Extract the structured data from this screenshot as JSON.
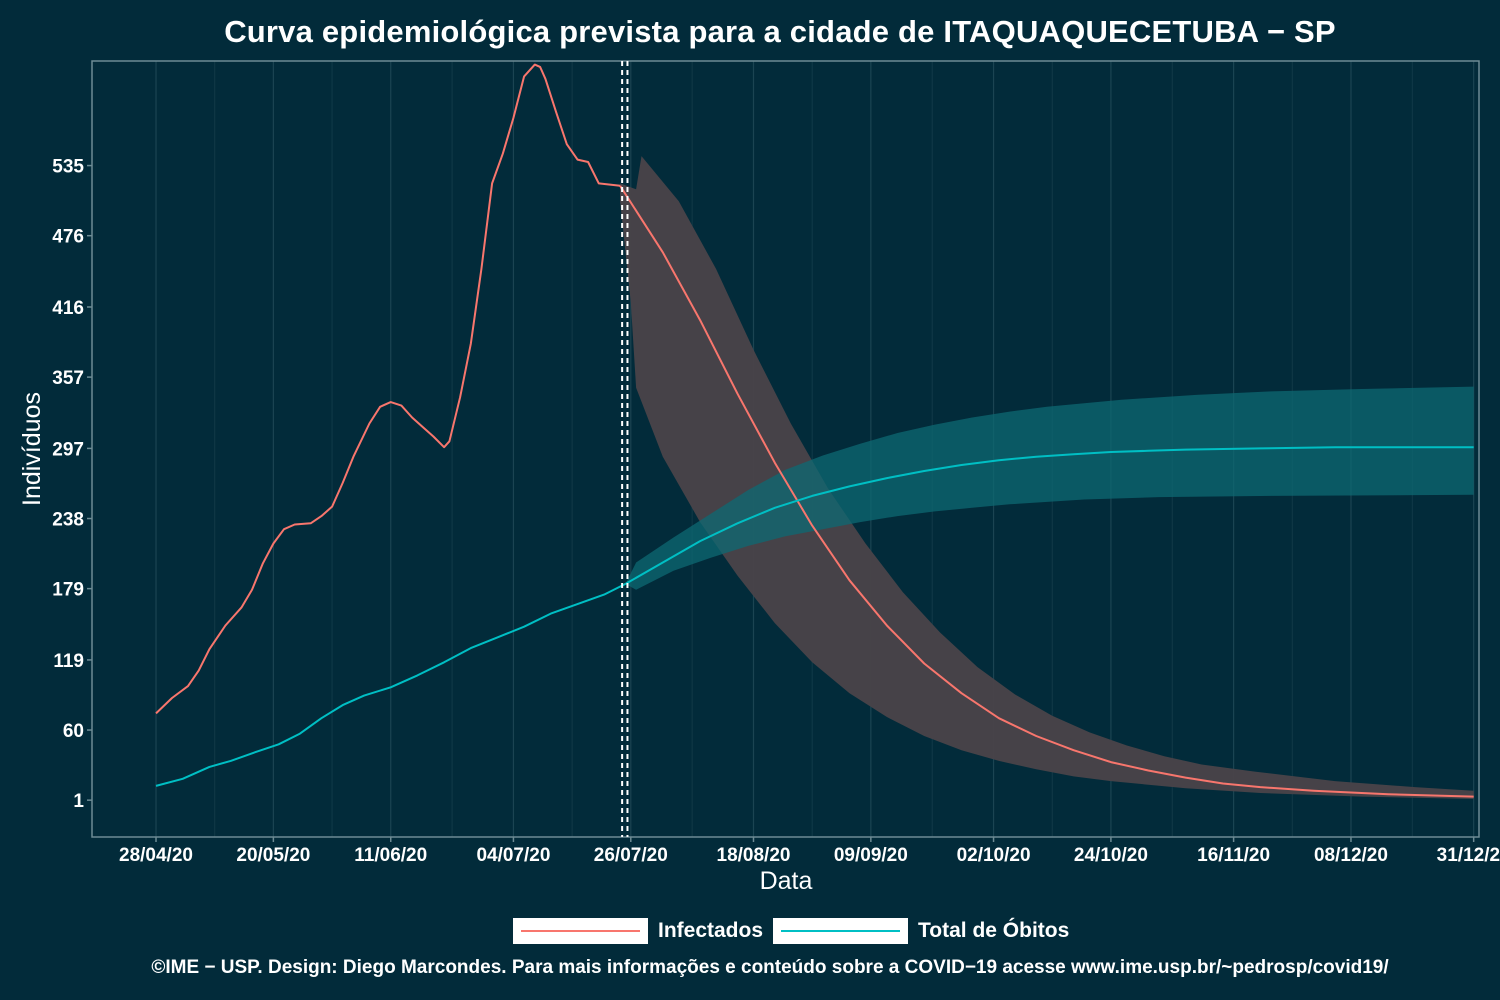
{
  "title": "Curva epidemiológica prevista para a cidade de ITAQUAQUECETUBA − SP",
  "footer": "©IME − USP. Design: Diego Marcondes. Para mais informações e conteúdo sobre a COVID−19 acesse www.ime.usp.br/~pedrosp/covid19/",
  "colors": {
    "background": "#022b3a",
    "infectados": "#f8766d",
    "obitos": "#00bfc4",
    "band_infectados": "#4a4349",
    "band_obitos": "#0d6a73"
  },
  "legend": {
    "infectados_label": "Infectados",
    "obitos_label": "Total de Óbitos"
  },
  "chart_data": {
    "type": "line",
    "xlabel": "Data",
    "ylabel": "Indivíduos",
    "x_ticks": [
      "28/04/20",
      "20/05/20",
      "11/06/20",
      "04/07/20",
      "26/07/20",
      "18/08/20",
      "09/09/20",
      "02/10/20",
      "24/10/20",
      "16/11/20",
      "08/12/20",
      "31/12/20"
    ],
    "y_ticks": [
      1,
      60,
      119,
      179,
      238,
      297,
      357,
      416,
      476,
      535
    ],
    "xlim": [
      "2020-04-16",
      "2021-01-01"
    ],
    "ylim": [
      -30,
      623
    ],
    "grid": true,
    "legend_position": "bottom",
    "forecast_start": [
      "2020-07-24",
      "2020-07-25"
    ],
    "series": [
      {
        "name": "Infectados",
        "observed": [
          [
            "2020-04-28",
            74
          ],
          [
            "2020-05-01",
            87
          ],
          [
            "2020-05-04",
            97
          ],
          [
            "2020-05-06",
            110
          ],
          [
            "2020-05-08",
            128
          ],
          [
            "2020-05-11",
            148
          ],
          [
            "2020-05-14",
            163
          ],
          [
            "2020-05-16",
            178
          ],
          [
            "2020-05-18",
            200
          ],
          [
            "2020-05-20",
            217
          ],
          [
            "2020-05-22",
            229
          ],
          [
            "2020-05-24",
            233
          ],
          [
            "2020-05-27",
            234
          ],
          [
            "2020-05-29",
            240
          ],
          [
            "2020-05-31",
            248
          ],
          [
            "2020-06-02",
            268
          ],
          [
            "2020-06-04",
            290
          ],
          [
            "2020-06-07",
            318
          ],
          [
            "2020-06-09",
            332
          ],
          [
            "2020-06-11",
            336
          ],
          [
            "2020-06-13",
            333
          ],
          [
            "2020-06-15",
            323
          ],
          [
            "2020-06-17",
            315
          ],
          [
            "2020-06-19",
            307
          ],
          [
            "2020-06-21",
            298
          ],
          [
            "2020-06-22",
            303
          ],
          [
            "2020-06-24",
            340
          ],
          [
            "2020-06-26",
            385
          ],
          [
            "2020-06-28",
            448
          ],
          [
            "2020-06-30",
            520
          ],
          [
            "2020-07-02",
            545
          ],
          [
            "2020-07-04",
            575
          ],
          [
            "2020-07-06",
            610
          ],
          [
            "2020-07-08",
            620
          ],
          [
            "2020-07-09",
            618
          ],
          [
            "2020-07-10",
            608
          ],
          [
            "2020-07-12",
            580
          ],
          [
            "2020-07-14",
            553
          ],
          [
            "2020-07-16",
            540
          ],
          [
            "2020-07-18",
            538
          ],
          [
            "2020-07-20",
            520
          ],
          [
            "2020-07-24",
            518
          ]
        ],
        "forecast": [
          [
            "2020-07-24",
            518
          ],
          [
            "2020-08-01",
            462
          ],
          [
            "2020-08-08",
            405
          ],
          [
            "2020-08-15",
            343
          ],
          [
            "2020-08-22",
            285
          ],
          [
            "2020-08-29",
            232
          ],
          [
            "2020-09-05",
            186
          ],
          [
            "2020-09-12",
            148
          ],
          [
            "2020-09-19",
            116
          ],
          [
            "2020-09-26",
            91
          ],
          [
            "2020-10-03",
            70
          ],
          [
            "2020-10-10",
            55
          ],
          [
            "2020-10-17",
            43
          ],
          [
            "2020-10-24",
            33
          ],
          [
            "2020-10-31",
            26
          ],
          [
            "2020-11-07",
            20
          ],
          [
            "2020-11-14",
            15
          ],
          [
            "2020-11-21",
            12
          ],
          [
            "2020-12-01",
            9
          ],
          [
            "2020-12-15",
            6
          ],
          [
            "2020-12-31",
            4
          ]
        ],
        "band_upper": [
          [
            "2020-07-24",
            520
          ],
          [
            "2020-07-27",
            515
          ],
          [
            "2020-07-28",
            543
          ],
          [
            "2020-08-04",
            505
          ],
          [
            "2020-08-11",
            448
          ],
          [
            "2020-08-18",
            380
          ],
          [
            "2020-08-25",
            318
          ],
          [
            "2020-09-01",
            263
          ],
          [
            "2020-09-08",
            217
          ],
          [
            "2020-09-15",
            176
          ],
          [
            "2020-09-22",
            142
          ],
          [
            "2020-09-29",
            113
          ],
          [
            "2020-10-06",
            90
          ],
          [
            "2020-10-13",
            72
          ],
          [
            "2020-10-20",
            58
          ],
          [
            "2020-10-27",
            47
          ],
          [
            "2020-11-03",
            38
          ],
          [
            "2020-11-10",
            31
          ],
          [
            "2020-11-20",
            25
          ],
          [
            "2020-12-05",
            17
          ],
          [
            "2020-12-20",
            12
          ],
          [
            "2020-12-31",
            9
          ]
        ],
        "band_lower": [
          [
            "2020-07-24",
            505
          ],
          [
            "2020-07-26",
            420
          ],
          [
            "2020-07-27",
            348
          ],
          [
            "2020-08-01",
            290
          ],
          [
            "2020-08-08",
            235
          ],
          [
            "2020-08-15",
            190
          ],
          [
            "2020-08-22",
            150
          ],
          [
            "2020-08-29",
            117
          ],
          [
            "2020-09-05",
            91
          ],
          [
            "2020-09-12",
            71
          ],
          [
            "2020-09-19",
            55
          ],
          [
            "2020-09-26",
            43
          ],
          [
            "2020-10-03",
            34
          ],
          [
            "2020-10-10",
            27
          ],
          [
            "2020-10-17",
            21
          ],
          [
            "2020-10-24",
            17
          ],
          [
            "2020-11-07",
            11
          ],
          [
            "2020-11-21",
            7
          ],
          [
            "2020-12-10",
            4
          ],
          [
            "2020-12-31",
            2
          ]
        ]
      },
      {
        "name": "Total de Óbitos",
        "observed": [
          [
            "2020-04-28",
            13
          ],
          [
            "2020-05-03",
            19
          ],
          [
            "2020-05-08",
            29
          ],
          [
            "2020-05-12",
            34
          ],
          [
            "2020-05-17",
            42
          ],
          [
            "2020-05-21",
            48
          ],
          [
            "2020-05-25",
            57
          ],
          [
            "2020-05-29",
            70
          ],
          [
            "2020-06-02",
            81
          ],
          [
            "2020-06-06",
            89
          ],
          [
            "2020-06-11",
            96
          ],
          [
            "2020-06-16",
            106
          ],
          [
            "2020-06-21",
            117
          ],
          [
            "2020-06-26",
            129
          ],
          [
            "2020-07-01",
            138
          ],
          [
            "2020-07-06",
            147
          ],
          [
            "2020-07-11",
            158
          ],
          [
            "2020-07-16",
            166
          ],
          [
            "2020-07-21",
            174
          ],
          [
            "2020-07-25",
            183
          ]
        ],
        "forecast": [
          [
            "2020-07-25",
            183
          ],
          [
            "2020-08-01",
            201
          ],
          [
            "2020-08-08",
            219
          ],
          [
            "2020-08-15",
            234
          ],
          [
            "2020-08-22",
            247
          ],
          [
            "2020-08-29",
            257
          ],
          [
            "2020-09-05",
            265
          ],
          [
            "2020-09-12",
            272
          ],
          [
            "2020-09-19",
            278
          ],
          [
            "2020-09-26",
            283
          ],
          [
            "2020-10-03",
            287
          ],
          [
            "2020-10-10",
            290
          ],
          [
            "2020-10-17",
            292
          ],
          [
            "2020-10-24",
            294
          ],
          [
            "2020-10-31",
            295
          ],
          [
            "2020-11-07",
            296
          ],
          [
            "2020-11-21",
            297
          ],
          [
            "2020-12-05",
            298
          ],
          [
            "2020-12-31",
            298
          ]
        ],
        "band_upper": [
          [
            "2020-07-25",
            183
          ],
          [
            "2020-07-27",
            201
          ],
          [
            "2020-08-03",
            222
          ],
          [
            "2020-08-10",
            242
          ],
          [
            "2020-08-17",
            262
          ],
          [
            "2020-08-24",
            279
          ],
          [
            "2020-08-31",
            291
          ],
          [
            "2020-09-07",
            301
          ],
          [
            "2020-09-14",
            310
          ],
          [
            "2020-09-21",
            317
          ],
          [
            "2020-09-28",
            323
          ],
          [
            "2020-10-05",
            328
          ],
          [
            "2020-10-12",
            332
          ],
          [
            "2020-10-19",
            335
          ],
          [
            "2020-10-26",
            338
          ],
          [
            "2020-11-09",
            342
          ],
          [
            "2020-11-23",
            345
          ],
          [
            "2020-12-10",
            347
          ],
          [
            "2020-12-31",
            349
          ]
        ],
        "band_lower": [
          [
            "2020-07-25",
            183
          ],
          [
            "2020-07-27",
            178
          ],
          [
            "2020-08-03",
            194
          ],
          [
            "2020-08-10",
            205
          ],
          [
            "2020-08-17",
            215
          ],
          [
            "2020-08-24",
            223
          ],
          [
            "2020-08-31",
            229
          ],
          [
            "2020-09-07",
            235
          ],
          [
            "2020-09-14",
            240
          ],
          [
            "2020-09-21",
            244
          ],
          [
            "2020-09-28",
            247
          ],
          [
            "2020-10-05",
            250
          ],
          [
            "2020-10-19",
            254
          ],
          [
            "2020-11-02",
            256
          ],
          [
            "2020-11-23",
            257
          ],
          [
            "2020-12-31",
            258
          ]
        ]
      }
    ]
  }
}
